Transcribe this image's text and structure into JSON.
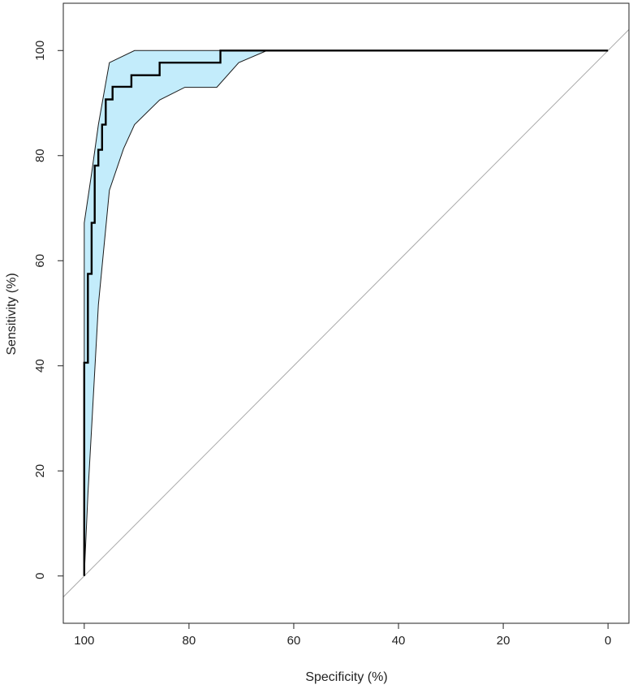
{
  "chart_data": {
    "type": "line",
    "title": "",
    "xlabel": "Specificity (%)",
    "ylabel": "Sensitivity (%)",
    "xlim": [
      104,
      -4
    ],
    "ylim": [
      -9,
      109
    ],
    "x_reversed": true,
    "x_ticks": [
      100,
      80,
      60,
      40,
      20,
      0
    ],
    "y_ticks": [
      0,
      20,
      40,
      60,
      80,
      100
    ],
    "grid": false,
    "legend": "none",
    "colors": {
      "curve": "#000000",
      "band_fill": "#c3ecfb",
      "band_edge": "#1a1a1a",
      "diagonal": "#aaaaaa",
      "frame": "#222222"
    },
    "reference_line": {
      "from": [
        100,
        0
      ],
      "to": [
        0,
        100
      ]
    },
    "roc_curve": {
      "specificity": [
        100,
        100,
        100,
        100,
        99.3,
        99.3,
        98.6,
        98.6,
        98.0,
        98.0,
        97.3,
        97.3,
        96.6,
        96.6,
        95.9,
        95.9,
        94.6,
        94.6,
        91.0,
        91.0,
        85.6,
        85.6,
        74.0,
        74.0,
        0
      ],
      "sensitivity": [
        0,
        15.6,
        26.5,
        40.6,
        40.6,
        57.5,
        57.5,
        67.2,
        67.2,
        78.1,
        78.1,
        81.1,
        81.1,
        85.9,
        85.9,
        90.7,
        90.7,
        93.1,
        93.1,
        95.3,
        95.3,
        97.7,
        97.7,
        100,
        100
      ]
    },
    "confidence_band": {
      "upper": {
        "specificity": [
          100,
          100,
          98.6,
          97.3,
          95.9,
          95.2,
          90.4,
          0
        ],
        "sensitivity": [
          0,
          67.2,
          76.6,
          85.9,
          93.8,
          97.7,
          100,
          100
        ]
      },
      "lower": {
        "specificity": [
          100,
          99.3,
          98.6,
          97.3,
          95.2,
          92.5,
          90.4,
          85.6,
          80.8,
          74.7,
          70.5,
          65.1,
          0
        ],
        "sensitivity": [
          0,
          15.6,
          28.1,
          51.6,
          73.4,
          81.3,
          85.9,
          90.6,
          93.0,
          93.0,
          97.7,
          100,
          100
        ]
      }
    }
  }
}
